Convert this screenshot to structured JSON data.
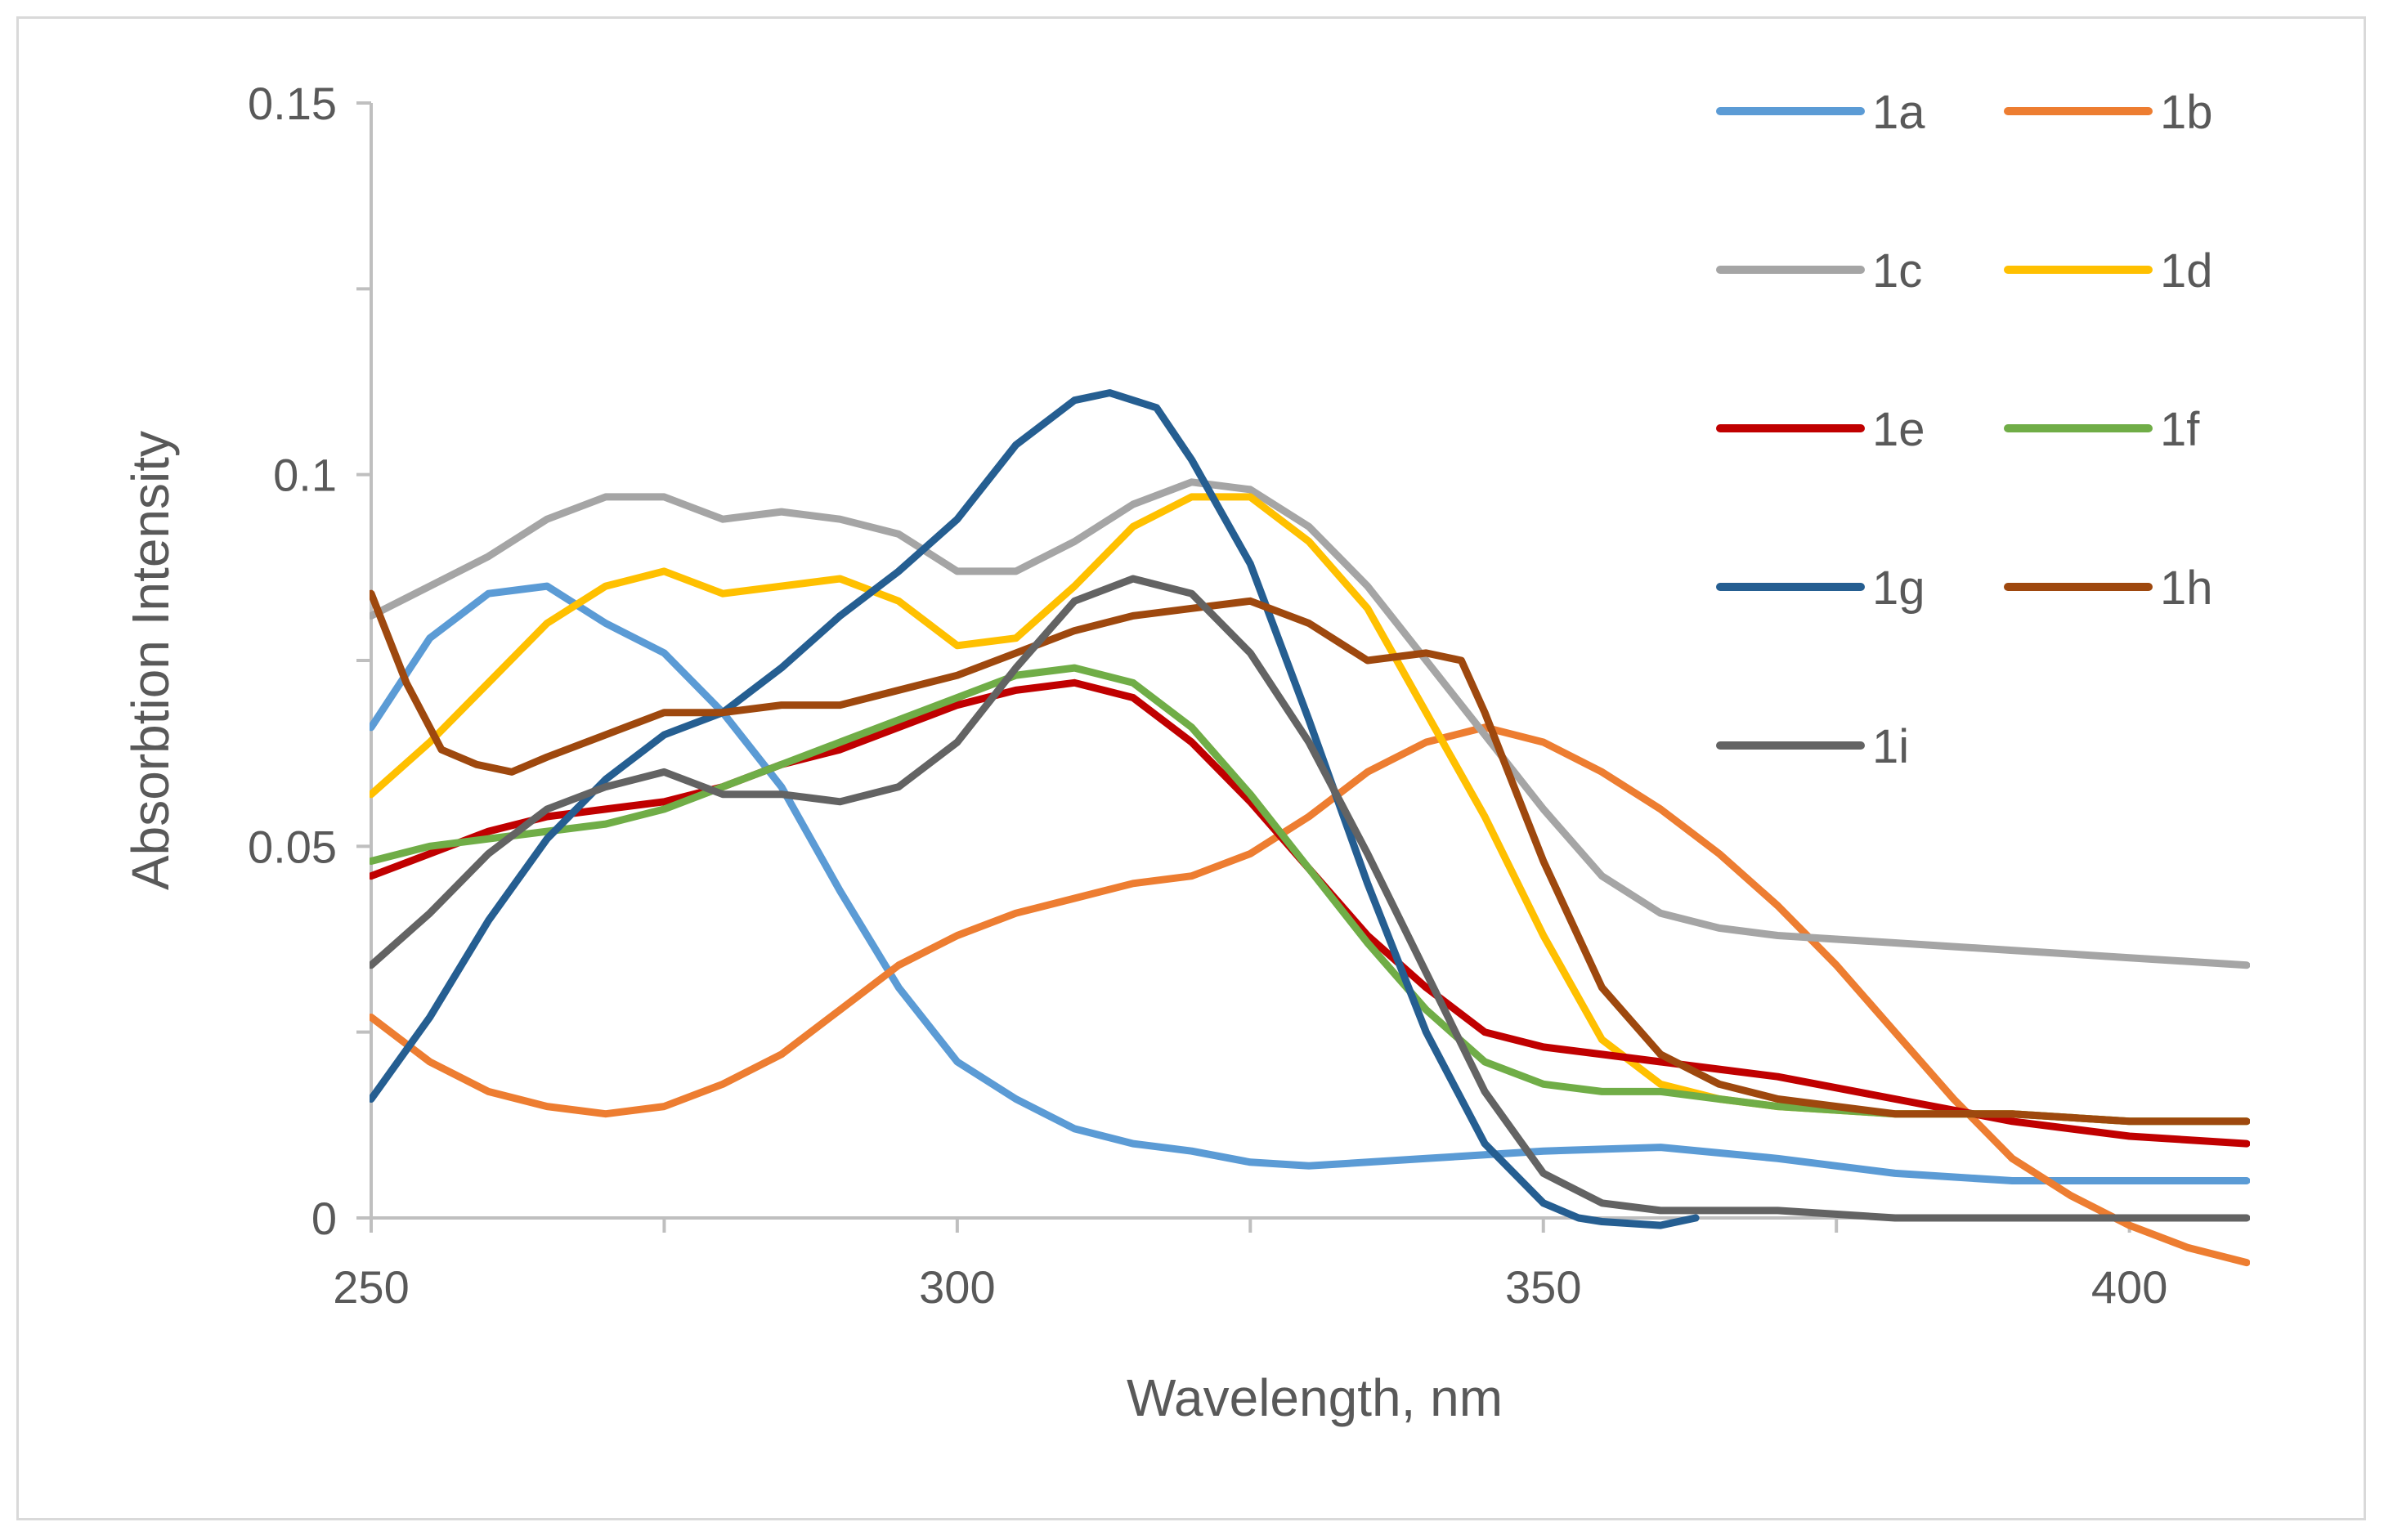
{
  "chart_data": {
    "type": "line",
    "title": "",
    "xlabel": "Wavelength, nm",
    "ylabel": "Absorbtion Intensity",
    "xlim": [
      250,
      410
    ],
    "ylim": [
      0,
      0.15
    ],
    "x_ticks": [
      250,
      300,
      350,
      400
    ],
    "x_tick_labels": [
      "250",
      "300",
      "350",
      "400"
    ],
    "y_ticks": [
      0,
      0.05,
      0.1,
      0.15
    ],
    "y_tick_labels": [
      "0",
      "0.05",
      "0.1",
      "0.15"
    ],
    "grid": false,
    "legend_position": "top-right",
    "series": [
      {
        "name": "1a",
        "color": "#5b9bd5",
        "x": [
          250,
          255,
          260,
          265,
          270,
          275,
          280,
          285,
          290,
          295,
          300,
          305,
          310,
          315,
          320,
          325,
          330,
          340,
          350,
          360,
          370,
          380,
          390,
          400,
          410
        ],
        "y": [
          0.066,
          0.078,
          0.084,
          0.085,
          0.08,
          0.076,
          0.068,
          0.058,
          0.044,
          0.031,
          0.021,
          0.016,
          0.012,
          0.01,
          0.009,
          0.0075,
          0.007,
          0.008,
          0.009,
          0.0095,
          0.008,
          0.006,
          0.005,
          0.005,
          0.005
        ]
      },
      {
        "name": "1b",
        "color": "#ed7d31",
        "x": [
          250,
          255,
          260,
          265,
          270,
          275,
          280,
          285,
          290,
          295,
          300,
          305,
          310,
          315,
          320,
          325,
          330,
          335,
          340,
          345,
          350,
          355,
          360,
          365,
          370,
          375,
          380,
          385,
          390,
          395,
          400,
          405,
          410
        ],
        "y": [
          0.027,
          0.021,
          0.017,
          0.015,
          0.014,
          0.015,
          0.018,
          0.022,
          0.028,
          0.034,
          0.038,
          0.041,
          0.043,
          0.045,
          0.046,
          0.049,
          0.054,
          0.06,
          0.064,
          0.066,
          0.064,
          0.06,
          0.055,
          0.049,
          0.042,
          0.034,
          0.025,
          0.016,
          0.008,
          0.003,
          -0.001,
          -0.004,
          -0.006
        ]
      },
      {
        "name": "1c",
        "color": "#a5a5a5",
        "x": [
          250,
          255,
          260,
          265,
          270,
          275,
          280,
          285,
          290,
          295,
          300,
          305,
          310,
          315,
          320,
          325,
          330,
          335,
          340,
          345,
          350,
          355,
          360,
          365,
          370,
          380,
          390,
          400,
          410
        ],
        "y": [
          0.081,
          0.085,
          0.089,
          0.094,
          0.097,
          0.097,
          0.094,
          0.095,
          0.094,
          0.092,
          0.087,
          0.087,
          0.091,
          0.096,
          0.099,
          0.098,
          0.093,
          0.085,
          0.075,
          0.065,
          0.055,
          0.046,
          0.041,
          0.039,
          0.038,
          0.037,
          0.036,
          0.035,
          0.034
        ]
      },
      {
        "name": "1d",
        "color": "#ffc000",
        "x": [
          250,
          255,
          260,
          265,
          270,
          275,
          280,
          285,
          290,
          295,
          300,
          305,
          310,
          315,
          320,
          325,
          330,
          335,
          340,
          345,
          350,
          355,
          360,
          365,
          370,
          380,
          390,
          400,
          410
        ],
        "y": [
          0.057,
          0.064,
          0.072,
          0.08,
          0.085,
          0.087,
          0.084,
          0.085,
          0.086,
          0.083,
          0.077,
          0.078,
          0.085,
          0.093,
          0.097,
          0.097,
          0.091,
          0.082,
          0.068,
          0.054,
          0.038,
          0.024,
          0.018,
          0.016,
          0.015,
          0.014,
          0.014,
          0.013,
          0.013
        ]
      },
      {
        "name": "1e",
        "color": "#c00000",
        "x": [
          250,
          255,
          260,
          265,
          270,
          275,
          280,
          285,
          290,
          295,
          300,
          305,
          310,
          315,
          320,
          325,
          330,
          335,
          340,
          345,
          350,
          355,
          360,
          365,
          370,
          380,
          390,
          400,
          410
        ],
        "y": [
          0.046,
          0.049,
          0.052,
          0.054,
          0.055,
          0.056,
          0.058,
          0.061,
          0.063,
          0.066,
          0.069,
          0.071,
          0.072,
          0.07,
          0.064,
          0.056,
          0.047,
          0.038,
          0.031,
          0.025,
          0.023,
          0.022,
          0.021,
          0.02,
          0.019,
          0.016,
          0.013,
          0.011,
          0.01
        ]
      },
      {
        "name": "1f",
        "color": "#70ad47",
        "x": [
          250,
          255,
          260,
          265,
          270,
          275,
          280,
          285,
          290,
          295,
          300,
          305,
          310,
          315,
          320,
          325,
          330,
          335,
          340,
          345,
          350,
          355,
          360,
          365,
          370,
          380,
          390,
          400,
          410
        ],
        "y": [
          0.048,
          0.05,
          0.051,
          0.052,
          0.053,
          0.055,
          0.058,
          0.061,
          0.064,
          0.067,
          0.07,
          0.073,
          0.074,
          0.072,
          0.066,
          0.057,
          0.047,
          0.037,
          0.028,
          0.021,
          0.018,
          0.017,
          0.017,
          0.016,
          0.015,
          0.014,
          0.014,
          0.013,
          0.013
        ]
      },
      {
        "name": "1g",
        "color": "#255e91",
        "x": [
          250,
          255,
          260,
          265,
          270,
          275,
          280,
          285,
          290,
          295,
          300,
          305,
          310,
          313,
          317,
          320,
          325,
          330,
          335,
          340,
          345,
          350,
          353,
          355,
          360,
          363
        ],
        "y": [
          0.016,
          0.027,
          0.04,
          0.051,
          0.059,
          0.065,
          0.068,
          0.074,
          0.081,
          0.087,
          0.094,
          0.104,
          0.11,
          0.111,
          0.109,
          0.102,
          0.088,
          0.067,
          0.045,
          0.025,
          0.01,
          0.002,
          0.0,
          -0.0005,
          -0.001,
          0.0
        ]
      },
      {
        "name": "1h",
        "color": "#9e480e",
        "x": [
          250,
          253,
          256,
          259,
          262,
          265,
          270,
          275,
          280,
          285,
          290,
          295,
          300,
          305,
          310,
          315,
          320,
          325,
          330,
          335,
          340,
          343,
          345,
          350,
          355,
          360,
          365,
          370,
          380,
          390,
          400,
          410
        ],
        "y": [
          0.084,
          0.072,
          0.063,
          0.061,
          0.06,
          0.062,
          0.065,
          0.068,
          0.068,
          0.069,
          0.069,
          0.071,
          0.073,
          0.076,
          0.079,
          0.081,
          0.082,
          0.083,
          0.08,
          0.075,
          0.076,
          0.075,
          0.068,
          0.048,
          0.031,
          0.022,
          0.018,
          0.016,
          0.014,
          0.014,
          0.013,
          0.013
        ]
      },
      {
        "name": "1i",
        "color": "#636363",
        "x": [
          250,
          255,
          260,
          265,
          270,
          275,
          280,
          285,
          290,
          295,
          300,
          305,
          310,
          315,
          320,
          325,
          330,
          335,
          340,
          345,
          350,
          355,
          360,
          365,
          370,
          380,
          390,
          400,
          410
        ],
        "y": [
          0.034,
          0.041,
          0.049,
          0.055,
          0.058,
          0.06,
          0.057,
          0.057,
          0.056,
          0.058,
          0.064,
          0.074,
          0.083,
          0.086,
          0.084,
          0.076,
          0.064,
          0.049,
          0.033,
          0.017,
          0.006,
          0.002,
          0.001,
          0.001,
          0.001,
          0.0,
          0.0,
          0.0,
          0.0
        ]
      }
    ]
  }
}
